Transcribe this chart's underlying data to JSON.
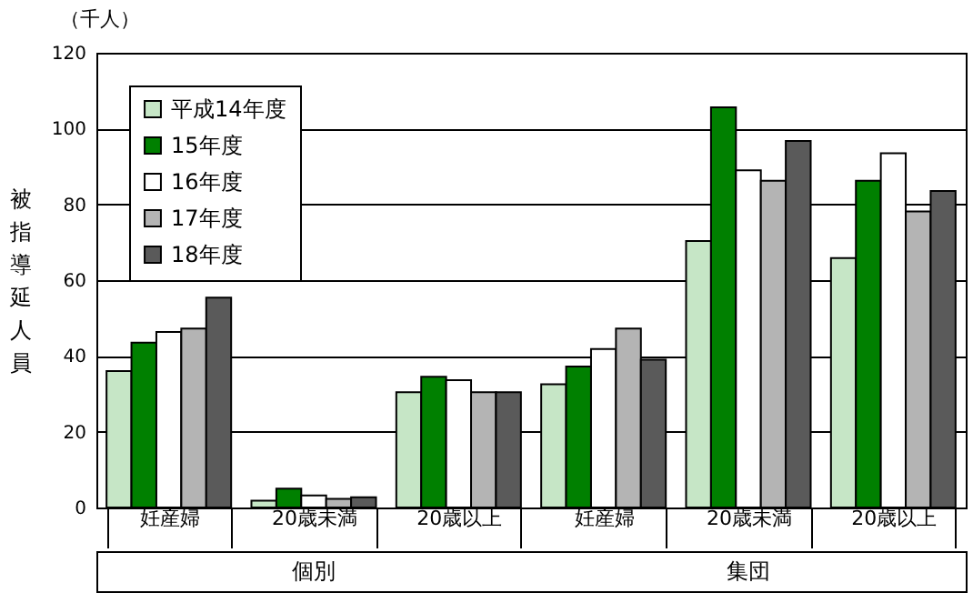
{
  "chart_data": {
    "type": "bar",
    "ylabel": "被指導延人員",
    "annotations": [
      "（千人）",
      "個別",
      "集団"
    ],
    "categories": [
      "妊産婦",
      "20歳未満",
      "20歳以上",
      "妊産婦",
      "20歳未満",
      "20歳以上"
    ],
    "series": [
      {
        "name": "平成14年度",
        "color": "#c6e6c6",
        "values": [
          36,
          1.8,
          30.4,
          32.5,
          70.3,
          65.8
        ]
      },
      {
        "name": "15年度",
        "color": "#008000",
        "values": [
          43.5,
          5,
          34.5,
          37.2,
          105.6,
          86.2
        ]
      },
      {
        "name": "16年度",
        "color": "#ffffff",
        "values": [
          46.3,
          3.2,
          33.6,
          41.8,
          89,
          93.5
        ]
      },
      {
        "name": "17年度",
        "color": "#b4b4b4",
        "values": [
          47.2,
          2.3,
          30.4,
          47.2,
          86.2,
          78.1
        ]
      },
      {
        "name": "18年度",
        "color": "#5a5a5a",
        "values": [
          55.4,
          2.7,
          30.4,
          39,
          96.7,
          83.5
        ]
      }
    ],
    "ylim": [
      0,
      120
    ],
    "yticks": [
      0,
      20,
      40,
      60,
      80,
      100,
      120
    ],
    "grid": "y",
    "legend": "top left"
  }
}
